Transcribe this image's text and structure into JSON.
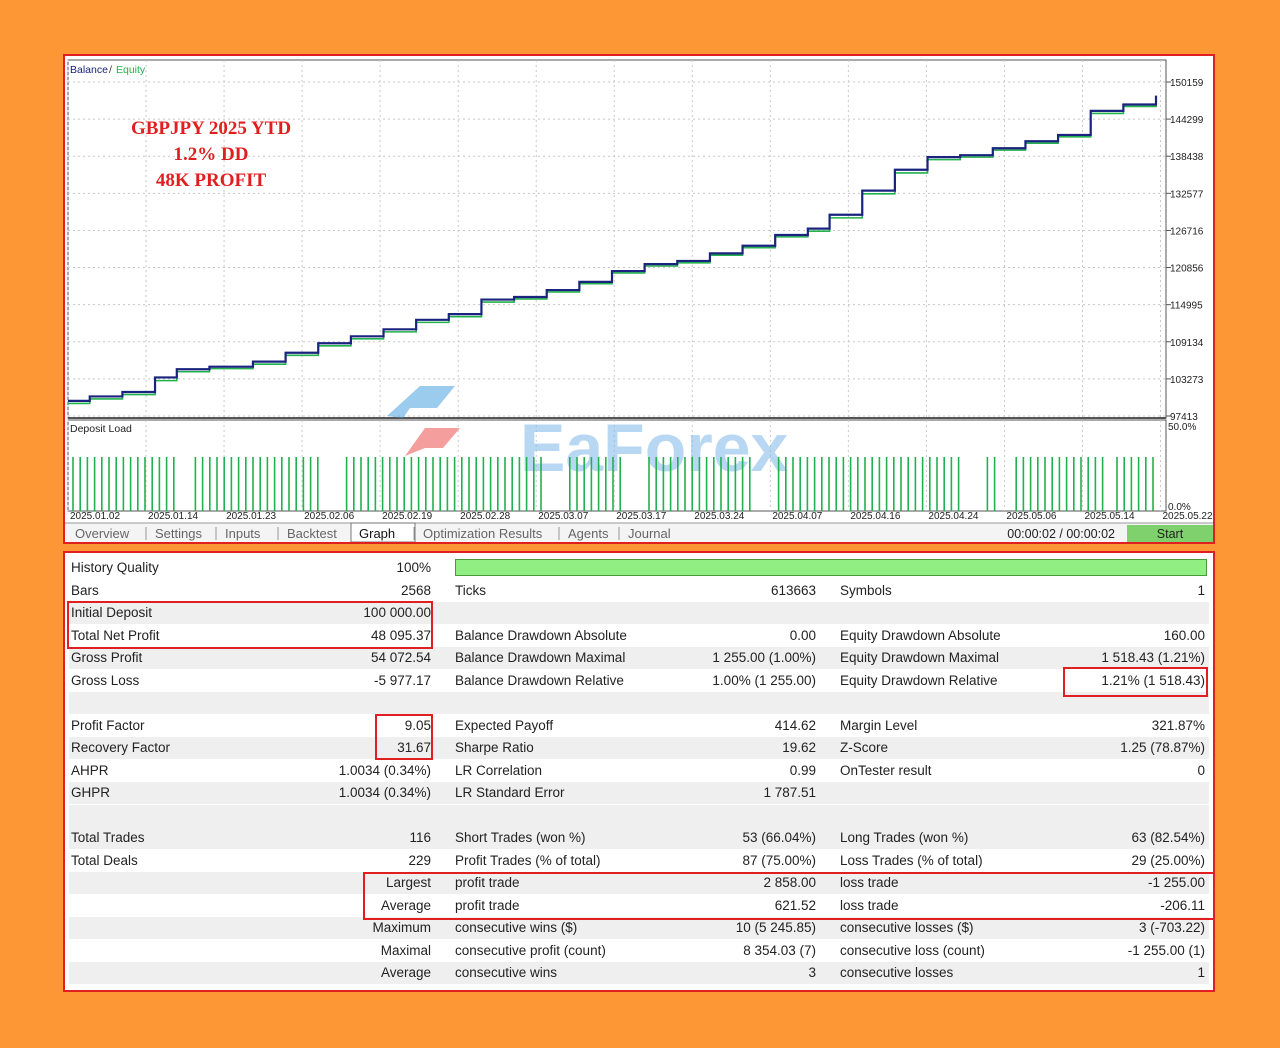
{
  "chart": {
    "legend_balance": "Balance",
    "legend_sep": " / ",
    "legend_equity": "Equity",
    "annotation_lines": [
      "GBPJPY 2025 YTD",
      "1.2% DD",
      "48K PROFIT"
    ],
    "y_ticks": [
      "150159",
      "144299",
      "138438",
      "132577",
      "126716",
      "120856",
      "114995",
      "109134",
      "103273",
      "97413"
    ],
    "x_ticks": [
      "2025.01.02",
      "2025.01.14",
      "2025.01.23",
      "2025.02.06",
      "2025.02.19",
      "2025.02.28",
      "2025.03.07",
      "2025.03.17",
      "2025.03.24",
      "2025.04.07",
      "2025.04.16",
      "2025.04.24",
      "2025.05.06",
      "2025.05.14",
      "2025.05.22"
    ],
    "deposit_load_label": "Deposit Load",
    "deposit_load_top": "50.0%",
    "deposit_load_bottom": "0.0%",
    "watermark": "EaForex",
    "colors": {
      "balance": "#1a237e",
      "equity": "#22b14c",
      "deposit_bar": "#22b14c",
      "highlight": "#e02020",
      "annotation": "#e02020"
    }
  },
  "chart_data": {
    "type": "line",
    "title": "",
    "xlabel": "",
    "ylabel": "",
    "ylim": [
      97413,
      150159
    ],
    "x_range": [
      "2025.01.02",
      "2025.05.22"
    ],
    "series": [
      {
        "name": "Balance",
        "x": [
          0,
          0.02,
          0.05,
          0.08,
          0.1,
          0.13,
          0.17,
          0.2,
          0.23,
          0.26,
          0.29,
          0.32,
          0.35,
          0.38,
          0.41,
          0.44,
          0.47,
          0.5,
          0.53,
          0.56,
          0.59,
          0.62,
          0.65,
          0.68,
          0.7,
          0.73,
          0.76,
          0.79,
          0.82,
          0.85,
          0.88,
          0.91,
          0.94,
          0.97,
          1.0
        ],
        "values": [
          99800,
          100500,
          101200,
          103500,
          104800,
          105200,
          106000,
          107400,
          108900,
          110000,
          111100,
          112600,
          113500,
          115800,
          116200,
          117300,
          118600,
          120300,
          121400,
          121900,
          123100,
          124300,
          126000,
          127000,
          129200,
          133000,
          136300,
          138300,
          138600,
          139700,
          140800,
          141800,
          145600,
          146600,
          148000
        ]
      },
      {
        "name": "Equity",
        "x": [
          0,
          0.02,
          0.05,
          0.08,
          0.1,
          0.13,
          0.17,
          0.2,
          0.23,
          0.26,
          0.29,
          0.32,
          0.35,
          0.38,
          0.41,
          0.44,
          0.47,
          0.5,
          0.53,
          0.56,
          0.59,
          0.62,
          0.65,
          0.68,
          0.7,
          0.73,
          0.76,
          0.79,
          0.82,
          0.85,
          0.88,
          0.91,
          0.94,
          0.97,
          1.0
        ],
        "values": [
          99400,
          100100,
          100800,
          103000,
          104400,
          104900,
          105600,
          107000,
          108500,
          109600,
          110700,
          112200,
          113100,
          115400,
          115900,
          117000,
          118300,
          120000,
          121100,
          121600,
          122800,
          124000,
          125700,
          126600,
          128700,
          132500,
          135800,
          137900,
          138300,
          139400,
          140500,
          141500,
          145200,
          146300,
          147700
        ]
      }
    ]
  },
  "tabs": [
    {
      "label": "Overview"
    },
    {
      "label": "Settings"
    },
    {
      "label": "Inputs"
    },
    {
      "label": "Backtest"
    },
    {
      "label": "Graph"
    },
    {
      "label": "Optimization Results"
    },
    {
      "label": "Agents"
    },
    {
      "label": "Journal"
    }
  ],
  "timer": "00:00:02 / 00:00:02",
  "start_label": "Start",
  "stats": {
    "history_quality": {
      "label": "History Quality",
      "value": "100%"
    },
    "rows": [
      {
        "c1l": "Bars",
        "c1v": "2568",
        "c2l": "Ticks",
        "c2v": "613663",
        "c3l": "Symbols",
        "c3v": "1"
      },
      {
        "c1l": "Initial Deposit",
        "c1v": "100 000.00",
        "c2l": "",
        "c2v": "",
        "c3l": "",
        "c3v": ""
      },
      {
        "c1l": "Total Net Profit",
        "c1v": "48 095.37",
        "c2l": "Balance Drawdown Absolute",
        "c2v": "0.00",
        "c3l": "Equity Drawdown Absolute",
        "c3v": "160.00"
      },
      {
        "c1l": "Gross Profit",
        "c1v": "54 072.54",
        "c2l": "Balance Drawdown Maximal",
        "c2v": "1 255.00 (1.00%)",
        "c3l": "Equity Drawdown Maximal",
        "c3v": "1 518.43 (1.21%)"
      },
      {
        "c1l": "Gross Loss",
        "c1v": "-5 977.17",
        "c2l": "Balance Drawdown Relative",
        "c2v": "1.00% (1 255.00)",
        "c3l": "Equity Drawdown Relative",
        "c3v": "1.21% (1 518.43)"
      },
      {
        "c1l": "",
        "c1v": "",
        "c2l": "",
        "c2v": "",
        "c3l": "",
        "c3v": ""
      },
      {
        "c1l": "Profit Factor",
        "c1v": "9.05",
        "c2l": "Expected Payoff",
        "c2v": "414.62",
        "c3l": "Margin Level",
        "c3v": "321.87%"
      },
      {
        "c1l": "Recovery Factor",
        "c1v": "31.67",
        "c2l": "Sharpe Ratio",
        "c2v": "19.62",
        "c3l": "Z-Score",
        "c3v": "1.25 (78.87%)"
      },
      {
        "c1l": "AHPR",
        "c1v": "1.0034 (0.34%)",
        "c2l": "LR Correlation",
        "c2v": "0.99",
        "c3l": "OnTester result",
        "c3v": "0"
      },
      {
        "c1l": "GHPR",
        "c1v": "1.0034 (0.34%)",
        "c2l": "LR Standard Error",
        "c2v": "1 787.51",
        "c3l": "",
        "c3v": ""
      },
      {
        "c1l": "",
        "c1v": "",
        "c2l": "",
        "c2v": "",
        "c3l": "",
        "c3v": ""
      },
      {
        "c1l": "Total Trades",
        "c1v": "116",
        "c2l": "Short Trades (won %)",
        "c2v": "53 (66.04%)",
        "c3l": "Long Trades (won %)",
        "c3v": "63 (82.54%)"
      },
      {
        "c1l": "Total Deals",
        "c1v": "229",
        "c2l": "Profit Trades (% of total)",
        "c2v": "87 (75.00%)",
        "c3l": "Loss Trades (% of total)",
        "c3v": "29 (25.00%)"
      },
      {
        "c1l": "",
        "c1v": "Largest",
        "c2l": "profit trade",
        "c2v": "2 858.00",
        "c3l": "loss trade",
        "c3v": "-1 255.00"
      },
      {
        "c1l": "",
        "c1v": "Average",
        "c2l": "profit trade",
        "c2v": "621.52",
        "c3l": "loss trade",
        "c3v": "-206.11"
      },
      {
        "c1l": "",
        "c1v": "Maximum",
        "c2l": "consecutive wins ($)",
        "c2v": "10 (5 245.85)",
        "c3l": "consecutive losses ($)",
        "c3v": "3 (-703.22)"
      },
      {
        "c1l": "",
        "c1v": "Maximal",
        "c2l": "consecutive profit (count)",
        "c2v": "8 354.03 (7)",
        "c3l": "consecutive loss (count)",
        "c3v": "-1 255.00 (1)"
      },
      {
        "c1l": "",
        "c1v": "Average",
        "c2l": "consecutive wins",
        "c2v": "3",
        "c3l": "consecutive losses",
        "c3v": "1"
      }
    ]
  }
}
